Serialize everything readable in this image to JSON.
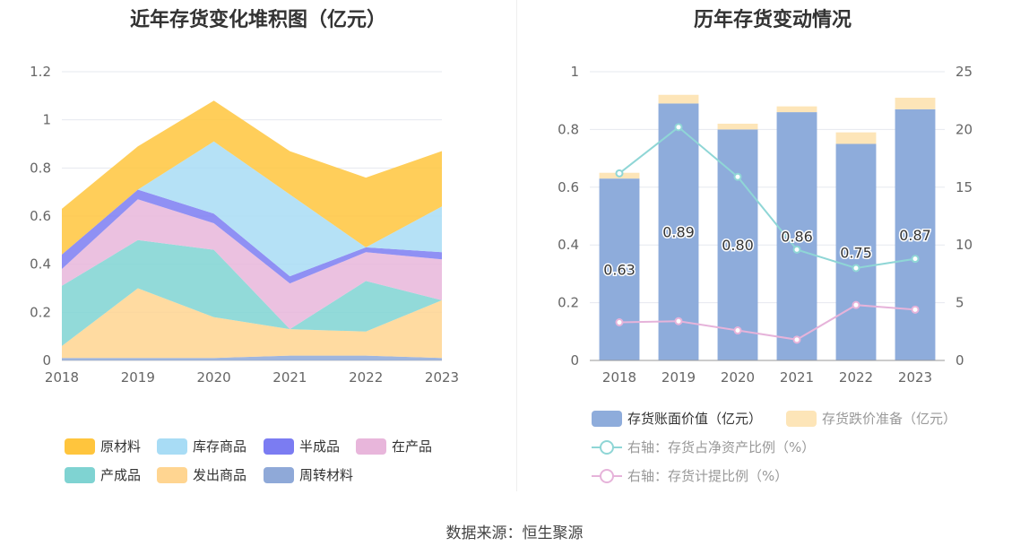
{
  "left": {
    "title": "近年存货变化堆积图（亿元）",
    "legend": [
      {
        "name": "原材料",
        "color": "#ffc53d"
      },
      {
        "name": "库存商品",
        "color": "#a8dcf5"
      },
      {
        "name": "半成品",
        "color": "#7b7cf2"
      },
      {
        "name": "在产品",
        "color": "#e8b6db"
      },
      {
        "name": "产成品",
        "color": "#7fd3d2"
      },
      {
        "name": "发出商品",
        "color": "#ffd591"
      },
      {
        "name": "周转材料",
        "color": "#8fa9d8"
      }
    ]
  },
  "right": {
    "title": "历年存货变动情况",
    "legend": [
      {
        "name": "存货账面价值（亿元）",
        "color": "#8eacdb"
      },
      {
        "name": "存货跌价准备（亿元）",
        "color": "#fde5b8"
      },
      {
        "name": "右轴：存货占净资产比例（%）",
        "color": "#8fd6d6"
      },
      {
        "name": "右轴：存货计提比例（%）",
        "color": "#e6b3da"
      }
    ]
  },
  "source": "数据来源：恒生聚源",
  "chart_data": [
    {
      "type": "area",
      "stacked": true,
      "title": "近年存货变化堆积图（亿元）",
      "x": [
        "2018",
        "2019",
        "2020",
        "2021",
        "2022",
        "2023"
      ],
      "ylim": [
        0,
        1.2
      ],
      "yticks": [
        "0",
        "0.2",
        "0.4",
        "0.6",
        "0.8",
        "1",
        "1.2"
      ],
      "grid": true,
      "legend_position": "bottom",
      "series": [
        {
          "name": "周转材料",
          "values": [
            0.01,
            0.01,
            0.01,
            0.02,
            0.02,
            0.01
          ]
        },
        {
          "name": "发出商品",
          "values": [
            0.05,
            0.29,
            0.17,
            0.11,
            0.1,
            0.24
          ]
        },
        {
          "name": "产成品",
          "values": [
            0.25,
            0.2,
            0.28,
            0.0,
            0.21,
            0.0
          ]
        },
        {
          "name": "在产品",
          "values": [
            0.07,
            0.17,
            0.11,
            0.19,
            0.12,
            0.17
          ]
        },
        {
          "name": "半成品",
          "values": [
            0.06,
            0.04,
            0.04,
            0.03,
            0.02,
            0.03
          ]
        },
        {
          "name": "库存商品",
          "values": [
            0.0,
            0.0,
            0.3,
            0.34,
            0.0,
            0.19
          ]
        },
        {
          "name": "原材料",
          "values": [
            0.19,
            0.18,
            0.17,
            0.18,
            0.29,
            0.23
          ]
        }
      ]
    },
    {
      "type": "bar",
      "stacked": true,
      "title": "历年存货变动情况",
      "categories": [
        "2018",
        "2019",
        "2020",
        "2021",
        "2022",
        "2023"
      ],
      "ylim": [
        0,
        1
      ],
      "yticks": [
        "0",
        "0.2",
        "0.4",
        "0.6",
        "0.8",
        "1"
      ],
      "y2lim": [
        0,
        25
      ],
      "y2ticks": [
        "0",
        "5",
        "10",
        "15",
        "20",
        "25"
      ],
      "grid": true,
      "legend_position": "bottom",
      "series": [
        {
          "name": "存货账面价值（亿元）",
          "values": [
            0.63,
            0.89,
            0.8,
            0.86,
            0.75,
            0.87
          ],
          "labels": [
            "0.63",
            "0.89",
            "0.80",
            "0.86",
            "0.75",
            "0.87"
          ]
        },
        {
          "name": "存货跌价准备（亿元）",
          "values": [
            0.02,
            0.03,
            0.02,
            0.02,
            0.04,
            0.04
          ]
        }
      ],
      "line_series": [
        {
          "name": "右轴：存货占净资产比例（%）",
          "axis": "right",
          "values": [
            16.2,
            20.2,
            15.9,
            9.6,
            8.0,
            8.8
          ]
        },
        {
          "name": "右轴：存货计提比例（%）",
          "axis": "right",
          "values": [
            3.3,
            3.4,
            2.6,
            1.8,
            4.8,
            4.4
          ]
        }
      ]
    }
  ]
}
